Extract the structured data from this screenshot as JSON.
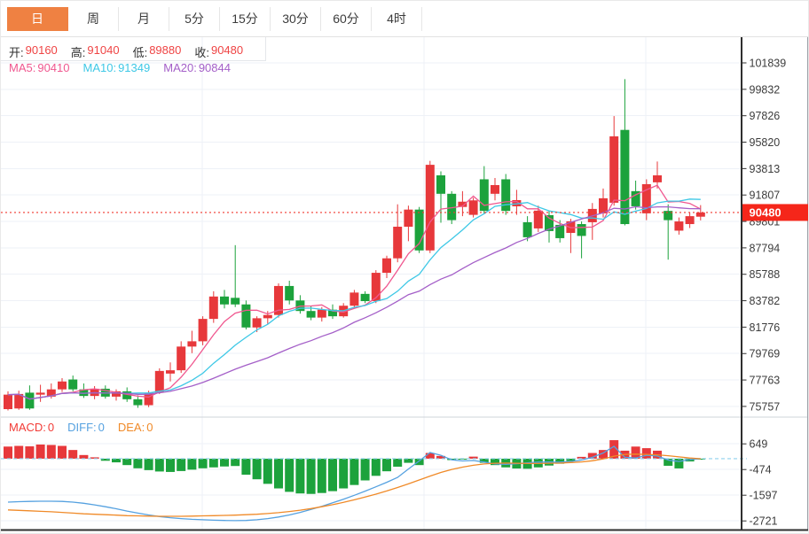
{
  "tabs": [
    {
      "label": "日",
      "active": true
    },
    {
      "label": "周",
      "active": false
    },
    {
      "label": "月",
      "active": false
    },
    {
      "label": "5分",
      "active": false
    },
    {
      "label": "15分",
      "active": false
    },
    {
      "label": "30分",
      "active": false
    },
    {
      "label": "60分",
      "active": false
    },
    {
      "label": "4时",
      "active": false
    }
  ],
  "info": {
    "ohlc": [
      {
        "label": "开:",
        "value": "90160"
      },
      {
        "label": "高:",
        "value": "91040"
      },
      {
        "label": "低:",
        "value": "89880"
      },
      {
        "label": "收:",
        "value": "90480"
      }
    ],
    "ma": [
      {
        "label": "MA5:",
        "value": "90410",
        "color": "#f0578f"
      },
      {
        "label": "MA10:",
        "value": "91349",
        "color": "#3ec8e6"
      },
      {
        "label": "MA20:",
        "value": "90844",
        "color": "#a45fc8"
      }
    ],
    "macd": [
      {
        "label": "MACD:",
        "value": "0",
        "color": "#f23b36"
      },
      {
        "label": "DIFF:",
        "value": "0",
        "color": "#55a1e0"
      },
      {
        "label": "DEA:",
        "value": "0",
        "color": "#f08a28"
      }
    ]
  },
  "colors": {
    "up": "#e7383b",
    "down": "#1ca23c",
    "tab_active_bg": "#ef8142",
    "last_price_bg": "#f5261a",
    "last_price_line": "#f0382e",
    "ma5": "#f0578f",
    "ma10": "#3ec8e6",
    "ma20": "#a45fc8",
    "diff": "#55a1e0",
    "dea": "#f08a28",
    "grid": "#eef1f7",
    "axis_line": "#2f2f2f",
    "axis_text": "#3c3c3c",
    "zero_dash": "#8fd0ee"
  },
  "chart_data": {
    "type": "candlestick+macd",
    "title": "",
    "legend": [
      "MA5",
      "MA10",
      "MA20",
      "MACD",
      "DIFF",
      "DEA"
    ],
    "price_axis_ticks": [
      101839,
      99832,
      97826,
      95820,
      93813,
      91807,
      89801,
      87794,
      85788,
      83782,
      81776,
      79769,
      77763,
      75757
    ],
    "macd_axis_ticks": [
      649,
      -474,
      -1597,
      -2721
    ],
    "last_price": 90480,
    "last_candle": {
      "open": 90160,
      "high": 91040,
      "low": 89880,
      "close": 90480
    },
    "moving_averages": {
      "ma5": 90410,
      "ma10": 91349,
      "ma20": 90844
    },
    "macd_readout": {
      "macd": 0,
      "diff": 0,
      "dea": 0
    },
    "candles": [
      [
        75550,
        76900,
        75450,
        76650
      ],
      [
        75600,
        76950,
        75500,
        76700
      ],
      [
        76800,
        77350,
        75500,
        75600
      ],
      [
        76650,
        77400,
        76100,
        76800
      ],
      [
        76500,
        77500,
        76350,
        77050
      ],
      [
        77050,
        77900,
        76850,
        77650
      ],
      [
        77800,
        78100,
        76900,
        77050
      ],
      [
        77050,
        77500,
        76400,
        76550
      ],
      [
        76550,
        77300,
        76300,
        77100
      ],
      [
        77100,
        77350,
        76350,
        76500
      ],
      [
        76500,
        77050,
        76200,
        76900
      ],
      [
        76900,
        77200,
        76100,
        76300
      ],
      [
        76300,
        76600,
        75650,
        75850
      ],
      [
        75850,
        76950,
        75700,
        76800
      ],
      [
        76800,
        78650,
        76700,
        78450
      ],
      [
        78250,
        79100,
        77650,
        78500
      ],
      [
        78500,
        80700,
        78300,
        80300
      ],
      [
        80300,
        81500,
        79800,
        80700
      ],
      [
        80700,
        82600,
        80400,
        82400
      ],
      [
        82400,
        84500,
        82100,
        84100
      ],
      [
        84100,
        84600,
        83200,
        83500
      ],
      [
        84000,
        88000,
        83300,
        83500
      ],
      [
        83500,
        83800,
        81600,
        81750
      ],
      [
        81750,
        82600,
        81400,
        82450
      ],
      [
        82450,
        83000,
        82000,
        82700
      ],
      [
        82700,
        85100,
        82500,
        84900
      ],
      [
        84900,
        85300,
        83500,
        83800
      ],
      [
        83800,
        84200,
        82800,
        83000
      ],
      [
        83000,
        83400,
        82300,
        82500
      ],
      [
        82500,
        83300,
        82200,
        83100
      ],
      [
        83100,
        83500,
        82400,
        82600
      ],
      [
        82600,
        83600,
        82500,
        83400
      ],
      [
        83400,
        84600,
        83200,
        84400
      ],
      [
        84300,
        84500,
        83600,
        83750
      ],
      [
        83750,
        86100,
        83600,
        85900
      ],
      [
        85900,
        87200,
        85500,
        87000
      ],
      [
        87000,
        91100,
        86700,
        89400
      ],
      [
        89400,
        91000,
        88300,
        90700
      ],
      [
        90700,
        90900,
        87400,
        87600
      ],
      [
        87600,
        94400,
        87400,
        94100
      ],
      [
        93300,
        93600,
        89700,
        91900
      ],
      [
        91900,
        92100,
        89600,
        89900
      ],
      [
        90900,
        92100,
        90200,
        91300
      ],
      [
        90300,
        91600,
        90100,
        91400
      ],
      [
        93000,
        94000,
        90400,
        90600
      ],
      [
        91900,
        93100,
        91400,
        92560
      ],
      [
        93000,
        93400,
        90300,
        90600
      ],
      [
        90950,
        92200,
        90300,
        91420
      ],
      [
        89740,
        90200,
        88300,
        88600
      ],
      [
        89270,
        91000,
        89000,
        90620
      ],
      [
        90280,
        90600,
        88200,
        89070
      ],
      [
        89540,
        89900,
        88200,
        88530
      ],
      [
        88930,
        90000,
        87400,
        89810
      ],
      [
        89600,
        89800,
        87000,
        88700
      ],
      [
        89740,
        91200,
        88400,
        90750
      ],
      [
        90415,
        92300,
        90100,
        91560
      ],
      [
        91220,
        97800,
        91000,
        96260
      ],
      [
        96750,
        100600,
        89500,
        89600
      ],
      [
        92100,
        92900,
        90700,
        90950
      ],
      [
        90415,
        93000,
        89900,
        92630
      ],
      [
        92770,
        94350,
        92300,
        93300
      ],
      [
        90600,
        91100,
        86900,
        89900
      ],
      [
        89100,
        90100,
        88800,
        89800
      ],
      [
        89600,
        90500,
        89300,
        90200
      ],
      [
        90160,
        91040,
        89880,
        90480
      ]
    ],
    "macd_hist": [
      530,
      560,
      540,
      620,
      600,
      560,
      380,
      160,
      60,
      -90,
      -160,
      -280,
      -420,
      -500,
      -560,
      -580,
      -540,
      -480,
      -420,
      -380,
      -340,
      -320,
      -700,
      -900,
      -1100,
      -1300,
      -1450,
      -1520,
      -1540,
      -1500,
      -1420,
      -1300,
      -1150,
      -950,
      -750,
      -550,
      -350,
      -180,
      -280,
      250,
      120,
      -60,
      -40,
      90,
      -180,
      -280,
      -380,
      -430,
      -440,
      -380,
      -300,
      -220,
      -100,
      80,
      250,
      380,
      810,
      350,
      530,
      460,
      350,
      -310,
      -425,
      -120,
      -40
    ],
    "diff_line": [
      -1900,
      -1880,
      -1870,
      -1860,
      -1860,
      -1870,
      -1900,
      -1950,
      -2020,
      -2100,
      -2190,
      -2290,
      -2380,
      -2460,
      -2530,
      -2580,
      -2620,
      -2650,
      -2670,
      -2690,
      -2700,
      -2710,
      -2700,
      -2670,
      -2620,
      -2550,
      -2460,
      -2350,
      -2220,
      -2080,
      -1930,
      -1770,
      -1600,
      -1420,
      -1230,
      -1030,
      -820,
      -450,
      -100,
      270,
      150,
      -50,
      -100,
      -80,
      -150,
      -230,
      -250,
      -220,
      -180,
      -150,
      -140,
      -150,
      -120,
      -60,
      60,
      250,
      540,
      60,
      30,
      150,
      120,
      -60,
      -120,
      -40,
      0
    ],
    "dea_line": [
      -2240,
      -2260,
      -2280,
      -2300,
      -2320,
      -2350,
      -2380,
      -2410,
      -2430,
      -2450,
      -2470,
      -2490,
      -2500,
      -2510,
      -2520,
      -2520,
      -2520,
      -2510,
      -2500,
      -2490,
      -2480,
      -2470,
      -2450,
      -2430,
      -2400,
      -2360,
      -2310,
      -2250,
      -2180,
      -2100,
      -2010,
      -1910,
      -1800,
      -1680,
      -1550,
      -1410,
      -1260,
      -1100,
      -930,
      -760,
      -600,
      -470,
      -370,
      -290,
      -230,
      -200,
      -190,
      -200,
      -210,
      -210,
      -200,
      -190,
      -170,
      -140,
      -90,
      -10,
      110,
      190,
      200,
      190,
      170,
      130,
      80,
      30,
      0
    ]
  }
}
